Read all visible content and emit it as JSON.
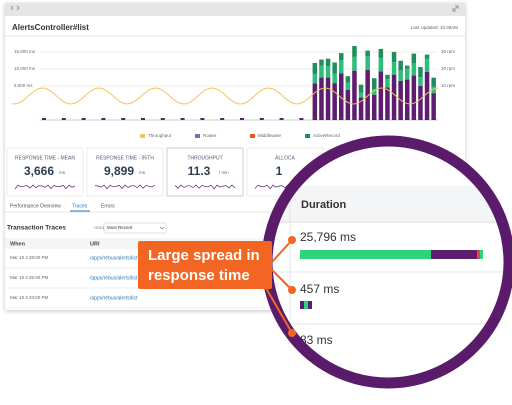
{
  "window": {
    "title": "AlertsController#list",
    "last_updated": "Last Updated: 10:39AM"
  },
  "chart": {
    "left_axis": [
      "15,000 ms",
      "10,000 ms",
      "5,000 ms"
    ],
    "right_axis": [
      "30 rpm",
      "20 rpm",
      "10 rpm"
    ],
    "legend": [
      "Throughput",
      "Router",
      "Middleware",
      "ActiveRecord"
    ]
  },
  "metrics": [
    {
      "label": "RESPONSE TIME - MEAN",
      "value": "3,666",
      "unit": "ms"
    },
    {
      "label": "RESPONSE TIME - 95TH",
      "value": "9,899",
      "unit": "ms"
    },
    {
      "label": "THROUGHPUT",
      "value": "11.3",
      "unit": "/ min"
    },
    {
      "label": "ALLOCA",
      "value": "1"
    }
  ],
  "tabs": [
    "Performance Overview",
    "Traces",
    "Errors"
  ],
  "traces": {
    "title": "Transaction Traces",
    "order_by_label": "ORDER BY",
    "order_by": "Most Recent",
    "columns": [
      "When",
      "URI"
    ],
    "rows": [
      [
        "Mar 19 4:38:00 PM",
        "/apps/rebus/alerts/list"
      ],
      [
        "Mar 19 4:35:00 PM",
        "/apps/rebus/alerts/list"
      ],
      [
        "Mar 19 4:33:00 PM",
        "/apps/rebus/alerts/list"
      ]
    ]
  },
  "magnifier": {
    "column": "Duration",
    "durations": [
      "25,796 ms",
      "457 ms",
      "83 ms"
    ]
  },
  "callout": [
    "Large spread in",
    "response time"
  ]
}
